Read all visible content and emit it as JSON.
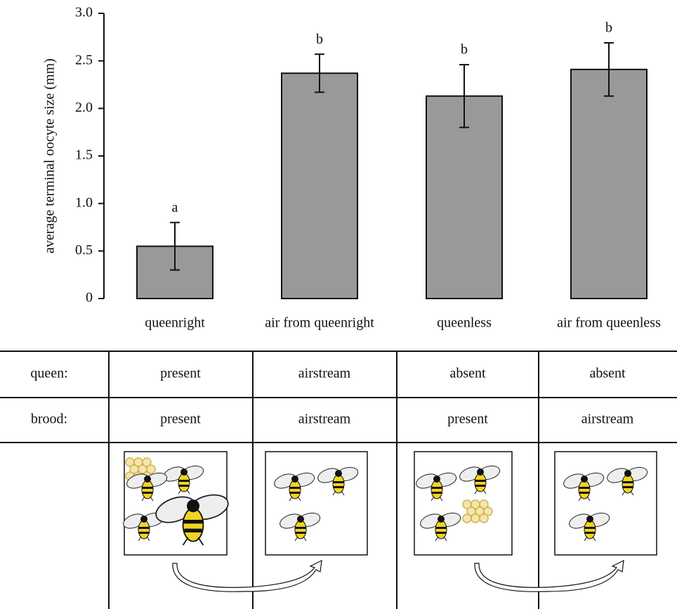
{
  "chart_data": {
    "type": "bar",
    "ylabel": "average terminal oocyte size (mm)",
    "categories": [
      "queenright",
      "air from queenright",
      "queenless",
      "air from queenless"
    ],
    "values": [
      0.55,
      2.37,
      2.13,
      2.41
    ],
    "errors": [
      0.25,
      0.2,
      0.33,
      0.28
    ],
    "annotations": [
      "a",
      "b",
      "b",
      "b"
    ],
    "color": "#999999",
    "ylim": [
      0,
      3.0
    ],
    "yticks": [
      0,
      0.5,
      {
        "value": 1.0,
        "label": "1.0"
      },
      1.5,
      {
        "value": 2.0,
        "label": "2.0"
      },
      2.5,
      {
        "value": 3.0,
        "label": "3.0"
      }
    ]
  },
  "table": {
    "rows": [
      {
        "label": "queen:",
        "cells": [
          "present",
          "airstream",
          "absent",
          "absent"
        ]
      },
      {
        "label": "brood:",
        "cells": [
          "present",
          "airstream",
          "present",
          "airstream"
        ]
      }
    ]
  }
}
